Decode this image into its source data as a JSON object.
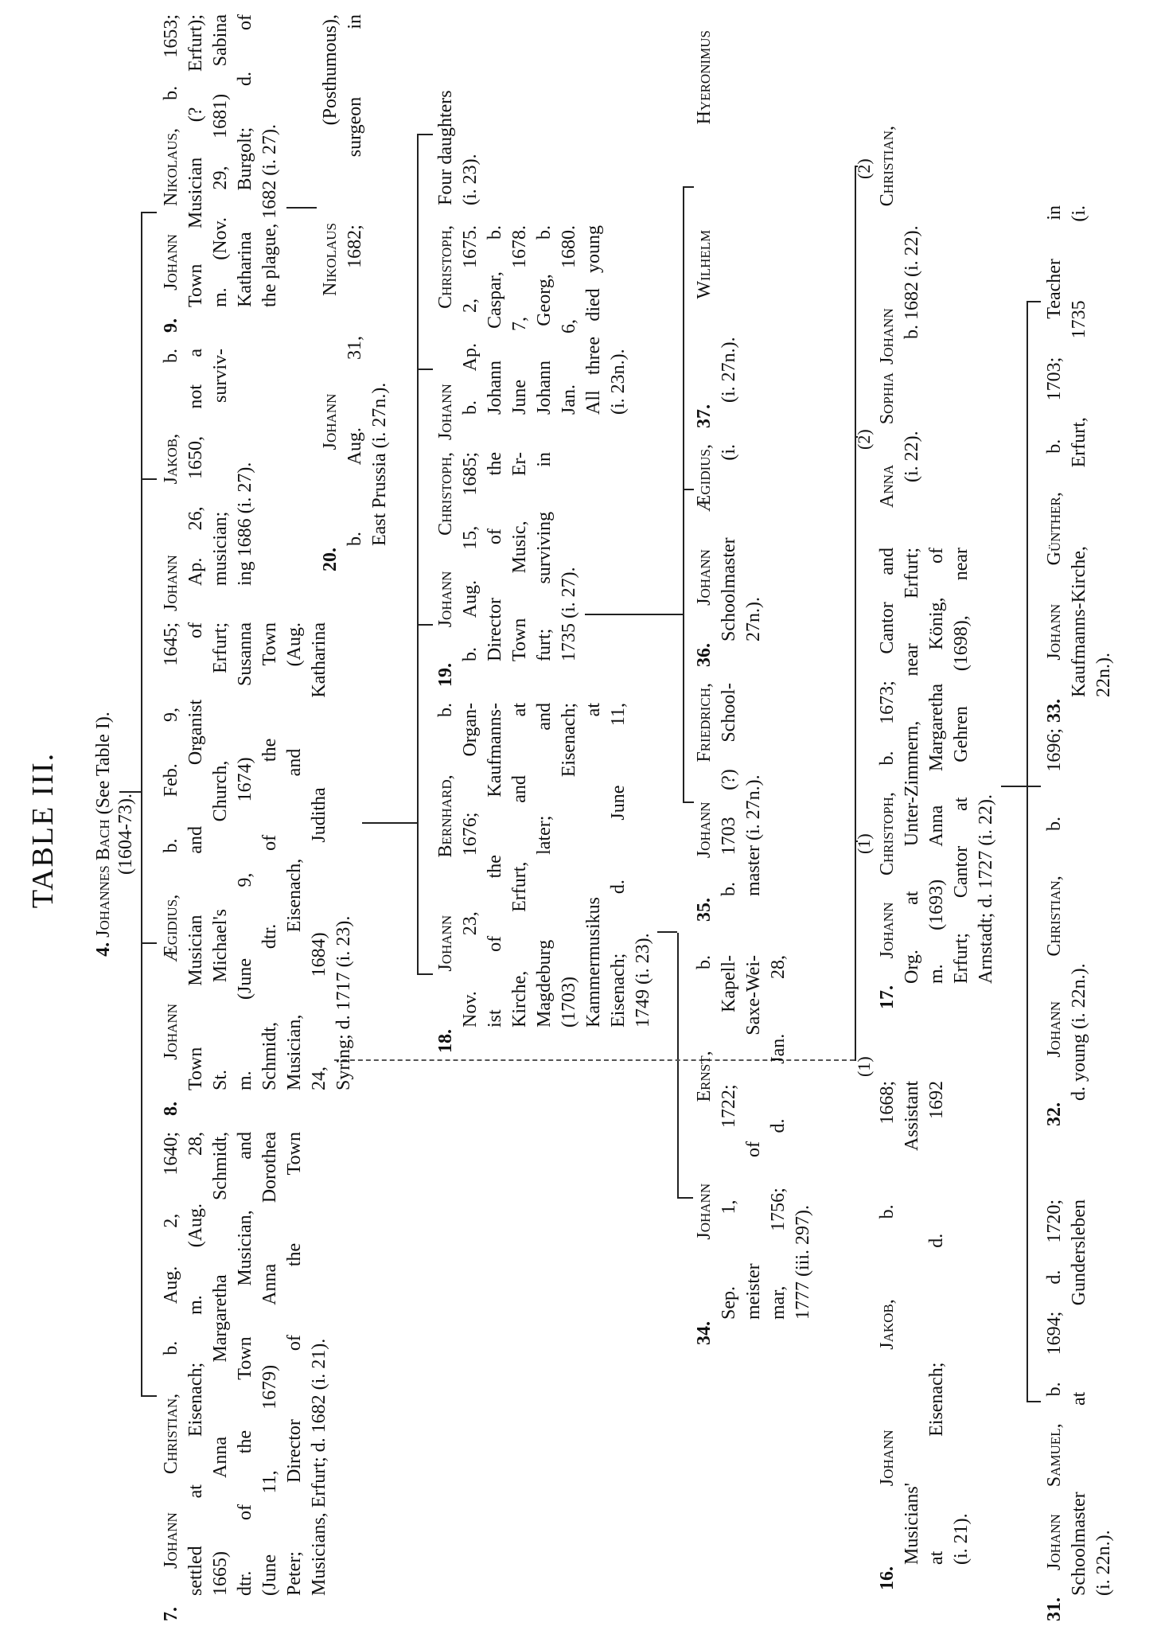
{
  "title": "TABLE III.",
  "root": {
    "num": "4.",
    "name": "Johannes Bach",
    "note": "(See Table I).",
    "dates": "(1604-73)."
  },
  "entries": [
    {
      "id": "e7",
      "num": "7.",
      "name": "Johann Christian",
      "lines": [
        ", b. Aug. 2, 1640;",
        "settled at Eisenach; m. (Aug. 28,",
        "1665) Anna Margaretha Schmidt,",
        "dtr. of the Town Musician, and",
        "(June 11, 1679) Anna Dorothea",
        "Peter; Director of the Town",
        "Musicians, Erfurt; d. 1682 (i. 21)."
      ]
    },
    {
      "id": "e8",
      "num": "8.",
      "name": "Johann Ægidius",
      "lines": [
        ", b. Feb. 9, 1645;",
        "Town Musician and Organist of",
        "St. Michael's Church, Erfurt;",
        "m. (June 9, 1674) Susanna",
        "Schmidt, dtr. of the Town",
        "Musician, Eisenach, and (Aug.",
        "24, 1684) Juditha Katharina",
        "Syring; d. 1717 (i. 23)."
      ]
    },
    {
      "id": "ejakob",
      "num": "",
      "name": "Johann Jakob",
      "lines": [
        ", b.",
        "Ap. 26, 1650, not a",
        "musician; surviv-",
        "ing 1686 (i. 27)."
      ]
    },
    {
      "id": "e9",
      "num": "9.",
      "name": "Johann Nikolaus",
      "lines": [
        ", b. 1653;",
        "Town Musician (? Erfurt);",
        "m. (Nov. 29, 1681) Sabina",
        "Katharina Burgolt; d. of",
        "the plague, 1682 (i. 27)."
      ]
    },
    {
      "id": "e20",
      "num": "20.",
      "name": "Johann Nikolaus",
      "lines": [
        " (Posthumous),",
        "b. Aug. 31, 1682; surgeon in",
        "East Prussia (i. 27n.)."
      ]
    },
    {
      "id": "e18",
      "num": "18.",
      "name": "Johann Bernhard",
      "lines": [
        ", b.",
        "Nov. 23, 1676; Organ-",
        "ist of the Kaufmanns-",
        "Kirche, Erfurt, and at",
        "Magdeburg later; and",
        "(1703) Eisenach;",
        "Kammermusikus at",
        "Eisenach; d. June 11,",
        "1749 (i. 23)."
      ]
    },
    {
      "id": "e19",
      "num": "19.",
      "name": "Johann Christoph",
      "lines": [
        ",",
        "b. Aug. 15, 1685;",
        "Director of the",
        "Town Music, Er-",
        "furt; surviving in",
        "1735 (i. 27)."
      ]
    },
    {
      "id": "ejc",
      "num": "",
      "name": "Johann Christoph",
      "lines": [
        ",",
        "b. Ap. 2, 1675.",
        "Johann Caspar, b.",
        "June 7, 1678.",
        "Johann Georg, b.",
        "Jan. 6, 1680.",
        "All three died young",
        "(i. 23n.)."
      ]
    },
    {
      "id": "efd",
      "num": "",
      "name": "",
      "lines": [
        "Four daughters",
        "(i. 23)."
      ]
    },
    {
      "id": "e34",
      "num": "34.",
      "name": "Johann Ernst",
      "lines": [
        ", b.",
        "Sep. 1, 1722; Kapell-",
        "meister of Saxe-Wei-",
        "mar, 1756; d. Jan. 28,",
        "1777 (iii. 297)."
      ]
    },
    {
      "id": "e35",
      "num": "35.",
      "name": "Johann Friedrich",
      "lines": [
        ",",
        "b. 1703 (?) School-",
        "master (i. 27n.)."
      ]
    },
    {
      "id": "e36",
      "num": "36.",
      "name": "Johann Ægidius",
      "lines": [
        ",",
        "Schoolmaster (i.",
        "27n.)."
      ]
    },
    {
      "id": "e37",
      "num": "37.",
      "name": "Wilhelm Hyeronimus",
      "lines": [
        "",
        "(i. 27n.)."
      ]
    },
    {
      "id": "e16",
      "num": "16.",
      "name": "Johann Jakob",
      "marker": "(1)",
      "lines": [
        ", b. 1668;",
        "Musicians' Assistant",
        "at Eisenach; d. 1692",
        "(i. 21)."
      ]
    },
    {
      "id": "e17",
      "num": "17.",
      "name": "Johann Christoph",
      "marker": "(1)",
      "lines": [
        ", b. 1673; Cantor and",
        "Org. at Unter-Zimmern, near Erfurt;",
        "m. (1693) Anna Margaretha König, of",
        "Erfurt; Cantor at Gehren (1698), near",
        "Arnstadt; d. 1727 (i. 22)."
      ]
    },
    {
      "id": "eanna",
      "num": "",
      "name": "Anna Sophia",
      "marker": "(2)",
      "lines": [
        "",
        "(i. 22)."
      ]
    },
    {
      "id": "ejc2",
      "num": "",
      "name": "Johann Christian",
      "marker": "(2)",
      "lines": [
        ",",
        "b. 1682 (i. 22)."
      ]
    },
    {
      "id": "e31",
      "num": "31.",
      "name": "Johann Samuel",
      "lines": [
        ", b. 1694; d. 1720;",
        "Schoolmaster at Gundersleben",
        "(i. 22n.)."
      ]
    },
    {
      "id": "e32",
      "num": "32.",
      "name": "Johann Christian",
      "lines": [
        ", b. 1696;",
        "d. young (i. 22n.)."
      ]
    },
    {
      "id": "e33",
      "num": "33.",
      "name": "Johann Günther",
      "lines": [
        ", b. 1703; Teacher in",
        "Kaufmanns-Kirche, Erfurt, 1735 (i.",
        "22n.)."
      ]
    }
  ]
}
